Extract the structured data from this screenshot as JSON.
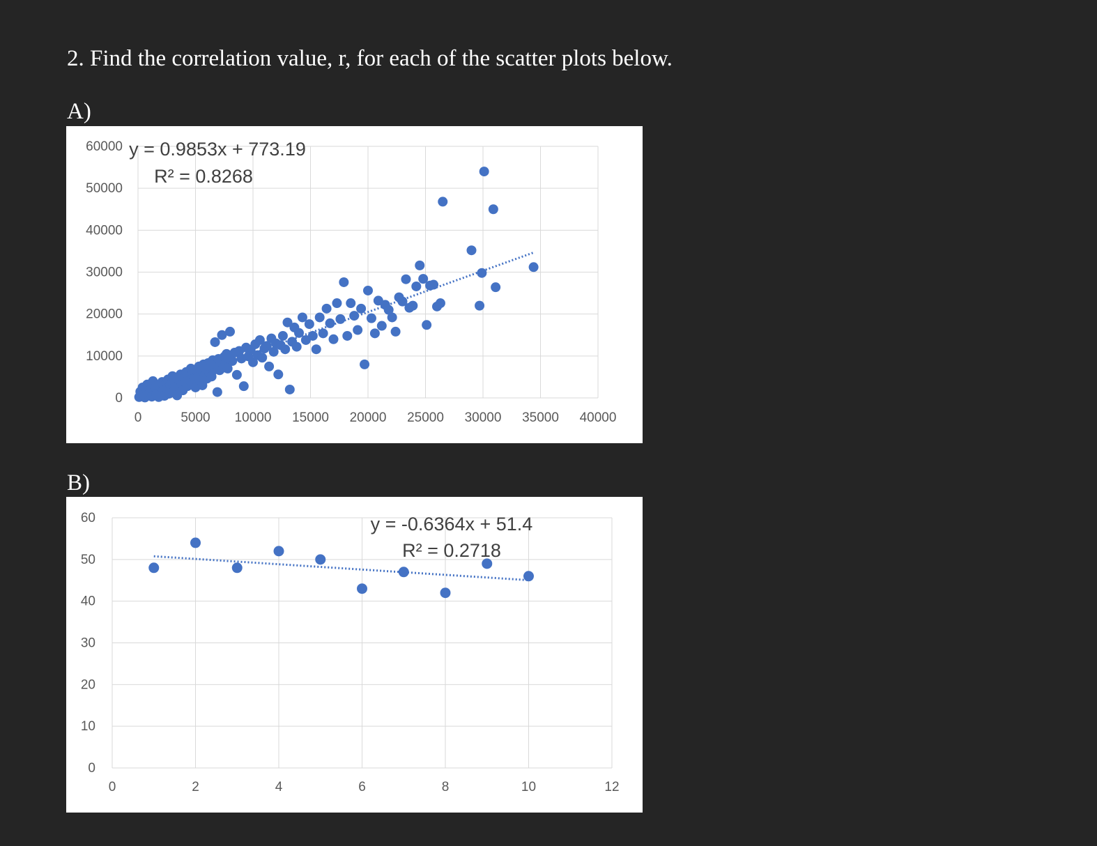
{
  "question": "2. Find the correlation value, r, for each of the scatter plots below.",
  "part_a_label": "A)",
  "part_b_label": "B)",
  "chart_data": [
    {
      "type": "scatter",
      "trendline": {
        "type": "linear",
        "style": "dotted",
        "slope": 0.9853,
        "intercept": 773.19,
        "x_range": [
          0,
          34500
        ]
      },
      "equation_label": "y = 0.9853x + 773.19",
      "r2_label": "R² = 0.8268",
      "xlim": [
        0,
        40000
      ],
      "ylim": [
        0,
        60000
      ],
      "x_ticks": [
        "0",
        "5000",
        "10000",
        "15000",
        "20000",
        "25000",
        "30000",
        "35000",
        "40000"
      ],
      "y_ticks": [
        "0",
        "10000",
        "20000",
        "30000",
        "40000",
        "50000",
        "60000"
      ],
      "grid": true,
      "marker_color": "#4472C4",
      "points": [
        [
          100,
          200
        ],
        [
          200,
          1500
        ],
        [
          300,
          500
        ],
        [
          400,
          2500
        ],
        [
          500,
          800
        ],
        [
          600,
          100
        ],
        [
          700,
          1800
        ],
        [
          800,
          3200
        ],
        [
          900,
          700
        ],
        [
          1000,
          1200
        ],
        [
          1100,
          2000
        ],
        [
          1200,
          300
        ],
        [
          1300,
          4000
        ],
        [
          1400,
          1600
        ],
        [
          1500,
          2400
        ],
        [
          1600,
          900
        ],
        [
          1700,
          3000
        ],
        [
          1800,
          200
        ],
        [
          1900,
          1300
        ],
        [
          2000,
          2600
        ],
        [
          2100,
          3800
        ],
        [
          2200,
          1800
        ],
        [
          2300,
          500
        ],
        [
          2400,
          3300
        ],
        [
          2500,
          2200
        ],
        [
          2600,
          4400
        ],
        [
          2700,
          1000
        ],
        [
          2800,
          3100
        ],
        [
          2900,
          2000
        ],
        [
          3000,
          5200
        ],
        [
          3100,
          1500
        ],
        [
          3200,
          3800
        ],
        [
          3300,
          2800
        ],
        [
          3400,
          600
        ],
        [
          3500,
          4500
        ],
        [
          3600,
          2400
        ],
        [
          3700,
          5600
        ],
        [
          3800,
          3300
        ],
        [
          3900,
          1800
        ],
        [
          4000,
          4900
        ],
        [
          4100,
          3800
        ],
        [
          4200,
          6200
        ],
        [
          4300,
          2800
        ],
        [
          4400,
          5400
        ],
        [
          4500,
          4200
        ],
        [
          4600,
          7000
        ],
        [
          4700,
          3600
        ],
        [
          4800,
          5900
        ],
        [
          4900,
          4800
        ],
        [
          5000,
          2500
        ],
        [
          5100,
          6600
        ],
        [
          5200,
          5000
        ],
        [
          5300,
          7500
        ],
        [
          5400,
          4200
        ],
        [
          5500,
          6500
        ],
        [
          5600,
          3000
        ],
        [
          5700,
          8000
        ],
        [
          5800,
          5500
        ],
        [
          5900,
          7000
        ],
        [
          6000,
          4600
        ],
        [
          6100,
          8300
        ],
        [
          6200,
          6000
        ],
        [
          6300,
          7200
        ],
        [
          6400,
          5100
        ],
        [
          6500,
          9000
        ],
        [
          6600,
          6700
        ],
        [
          6700,
          13300
        ],
        [
          6800,
          7800
        ],
        [
          6900,
          1400
        ],
        [
          7000,
          9300
        ],
        [
          7100,
          6600
        ],
        [
          7200,
          8500
        ],
        [
          7300,
          15000
        ],
        [
          7400,
          7200
        ],
        [
          7500,
          9800
        ],
        [
          7600,
          8100
        ],
        [
          7700,
          10500
        ],
        [
          7800,
          7000
        ],
        [
          7900,
          9400
        ],
        [
          8000,
          15800
        ],
        [
          8200,
          8800
        ],
        [
          8400,
          10800
        ],
        [
          8600,
          5500
        ],
        [
          8800,
          11200
        ],
        [
          9000,
          9400
        ],
        [
          9200,
          2800
        ],
        [
          9400,
          12000
        ],
        [
          9600,
          9900
        ],
        [
          9800,
          11500
        ],
        [
          10000,
          8500
        ],
        [
          10200,
          12800
        ],
        [
          10400,
          10200
        ],
        [
          10600,
          13800
        ],
        [
          10800,
          9600
        ],
        [
          11000,
          11800
        ],
        [
          11200,
          12400
        ],
        [
          11400,
          7500
        ],
        [
          11600,
          14200
        ],
        [
          11800,
          11000
        ],
        [
          12000,
          13000
        ],
        [
          12200,
          5600
        ],
        [
          12400,
          12600
        ],
        [
          12600,
          14800
        ],
        [
          12800,
          11600
        ],
        [
          13000,
          18000
        ],
        [
          13200,
          2000
        ],
        [
          13400,
          13400
        ],
        [
          13600,
          16800
        ],
        [
          13800,
          12200
        ],
        [
          14000,
          15500
        ],
        [
          14300,
          19200
        ],
        [
          14600,
          13800
        ],
        [
          14900,
          17600
        ],
        [
          15200,
          14800
        ],
        [
          15500,
          11600
        ],
        [
          15800,
          19200
        ],
        [
          16100,
          15400
        ],
        [
          16400,
          21300
        ],
        [
          16700,
          17800
        ],
        [
          17000,
          14000
        ],
        [
          17300,
          22600
        ],
        [
          17600,
          18800
        ],
        [
          17900,
          27600
        ],
        [
          18200,
          14800
        ],
        [
          18500,
          22600
        ],
        [
          18800,
          19600
        ],
        [
          19100,
          16200
        ],
        [
          19400,
          21300
        ],
        [
          19700,
          8000
        ],
        [
          20000,
          25600
        ],
        [
          20300,
          19000
        ],
        [
          20600,
          15400
        ],
        [
          20900,
          23200
        ],
        [
          21200,
          17200
        ],
        [
          21500,
          22200
        ],
        [
          21800,
          21000
        ],
        [
          22100,
          19200
        ],
        [
          22400,
          15800
        ],
        [
          22700,
          24000
        ],
        [
          23000,
          23000
        ],
        [
          23300,
          28300
        ],
        [
          23600,
          21500
        ],
        [
          23900,
          22000
        ],
        [
          24200,
          26600
        ],
        [
          24500,
          31600
        ],
        [
          24800,
          28400
        ],
        [
          25100,
          17400
        ],
        [
          25400,
          26800
        ],
        [
          25700,
          27000
        ],
        [
          26000,
          21800
        ],
        [
          26300,
          22600
        ],
        [
          26500,
          46800
        ],
        [
          29000,
          35200
        ],
        [
          29700,
          22000
        ],
        [
          29900,
          29800
        ],
        [
          30100,
          54000
        ],
        [
          30900,
          45000
        ],
        [
          31100,
          26400
        ],
        [
          34400,
          31200
        ]
      ]
    },
    {
      "type": "scatter",
      "trendline": {
        "type": "linear",
        "style": "dotted",
        "slope": -0.6364,
        "intercept": 51.4,
        "x_range": [
          1,
          10
        ]
      },
      "equation_label": "y = -0.6364x + 51.4",
      "r2_label": "R² = 0.2718",
      "xlim": [
        0,
        12
      ],
      "ylim": [
        0,
        60
      ],
      "x_ticks": [
        "0",
        "2",
        "4",
        "6",
        "8",
        "10",
        "12"
      ],
      "y_ticks": [
        "0",
        "10",
        "20",
        "30",
        "40",
        "50",
        "60"
      ],
      "grid": true,
      "marker_color": "#4472C4",
      "points": [
        [
          1,
          48
        ],
        [
          2,
          54
        ],
        [
          3,
          48
        ],
        [
          4,
          52
        ],
        [
          5,
          50
        ],
        [
          6,
          43
        ],
        [
          7,
          47
        ],
        [
          8,
          42
        ],
        [
          9,
          49
        ],
        [
          10,
          46
        ]
      ]
    }
  ]
}
